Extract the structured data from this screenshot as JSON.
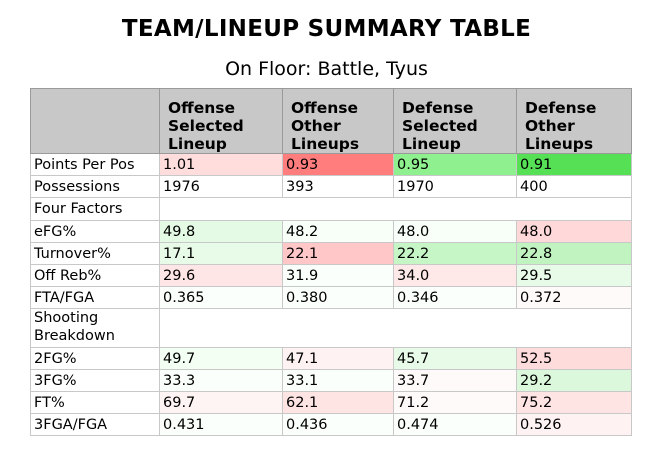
{
  "title": "TEAM/LINEUP SUMMARY TABLE",
  "subtitle": "On Floor: Battle, Tyus",
  "table": {
    "headers": [
      "",
      "Offense Selected Lineup",
      "Offense Other Lineups",
      "Defense Selected Lineup",
      "Defense Other Lineups"
    ],
    "rows": [
      {
        "type": "data",
        "label": "Points Per Pos",
        "cells": [
          {
            "value": "1.01",
            "color": "#ffdddd"
          },
          {
            "value": "0.93",
            "color": "#ff7d7d"
          },
          {
            "value": "0.95",
            "color": "#8ff08f"
          },
          {
            "value": "0.91",
            "color": "#55e055"
          }
        ]
      },
      {
        "type": "data",
        "label": "Possessions",
        "cells": [
          {
            "value": "1976",
            "color": "#ffffff"
          },
          {
            "value": "393",
            "color": "#ffffff"
          },
          {
            "value": "1970",
            "color": "#ffffff"
          },
          {
            "value": "400",
            "color": "#ffffff"
          }
        ]
      },
      {
        "type": "section",
        "label": "Four Factors"
      },
      {
        "type": "data",
        "label": "eFG%",
        "cells": [
          {
            "value": "49.8",
            "color": "#e5fae5"
          },
          {
            "value": "48.2",
            "color": "#f8fff8"
          },
          {
            "value": "48.0",
            "color": "#f8fff8"
          },
          {
            "value": "48.0",
            "color": "#ffd9d9"
          }
        ]
      },
      {
        "type": "data",
        "label": "Turnover%",
        "cells": [
          {
            "value": "17.1",
            "color": "#e8fbe8"
          },
          {
            "value": "22.1",
            "color": "#ffc7c7"
          },
          {
            "value": "22.2",
            "color": "#c6f5c6"
          },
          {
            "value": "22.8",
            "color": "#c0f3c0"
          }
        ]
      },
      {
        "type": "data",
        "label": "Off Reb%",
        "cells": [
          {
            "value": "29.6",
            "color": "#ffe6e6"
          },
          {
            "value": "31.9",
            "color": "#fbfffb"
          },
          {
            "value": "34.0",
            "color": "#ffe8e8"
          },
          {
            "value": "29.5",
            "color": "#e8fbe8"
          }
        ]
      },
      {
        "type": "data",
        "label": "FTA/FGA",
        "cells": [
          {
            "value": "0.365",
            "color": "#fbfffb"
          },
          {
            "value": "0.380",
            "color": "#fbfffb"
          },
          {
            "value": "0.346",
            "color": "#fbfffb"
          },
          {
            "value": "0.372",
            "color": "#fffafa"
          }
        ]
      },
      {
        "type": "section-tall",
        "label": "Shooting Breakdown"
      },
      {
        "type": "data",
        "label": "2FG%",
        "cells": [
          {
            "value": "49.7",
            "color": "#f3fff3"
          },
          {
            "value": "47.1",
            "color": "#fff2f2"
          },
          {
            "value": "45.7",
            "color": "#e8fbe8"
          },
          {
            "value": "52.5",
            "color": "#ffdcdc"
          }
        ]
      },
      {
        "type": "data",
        "label": "3FG%",
        "cells": [
          {
            "value": "33.3",
            "color": "#fbfffb"
          },
          {
            "value": "33.1",
            "color": "#fbfffb"
          },
          {
            "value": "33.7",
            "color": "#fffafa"
          },
          {
            "value": "29.2",
            "color": "#dcf8dc"
          }
        ]
      },
      {
        "type": "data",
        "label": "FT%",
        "cells": [
          {
            "value": "69.7",
            "color": "#fff4f4"
          },
          {
            "value": "62.1",
            "color": "#ffe4e4"
          },
          {
            "value": "71.2",
            "color": "#fffafa"
          },
          {
            "value": "75.2",
            "color": "#ffe4e4"
          }
        ]
      },
      {
        "type": "data",
        "label": "3FGA/FGA",
        "cells": [
          {
            "value": "0.431",
            "color": "#fbfffb"
          },
          {
            "value": "0.436",
            "color": "#fbfffb"
          },
          {
            "value": "0.474",
            "color": "#fbfffb"
          },
          {
            "value": "0.526",
            "color": "#fff2f2"
          }
        ]
      }
    ]
  }
}
